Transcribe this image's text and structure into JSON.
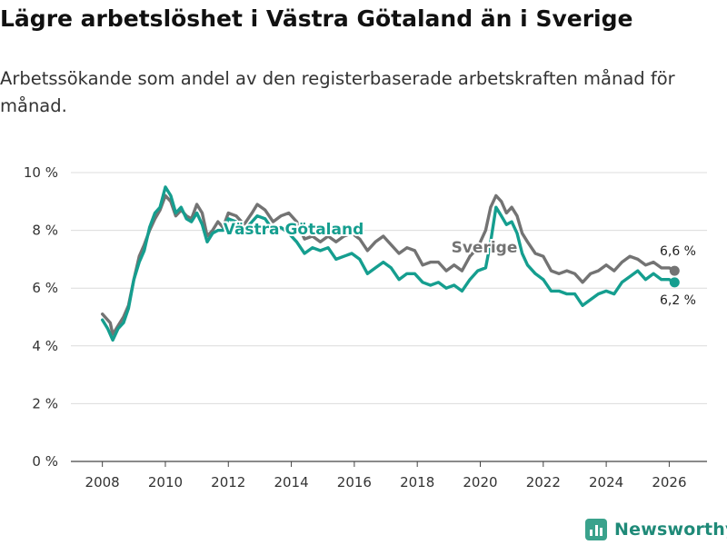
{
  "header": {
    "title": "Lägre arbetslöshet i Västra Götaland än i Sverige",
    "subtitle": "Arbetssökande som andel av den registerbaserade arbetskraften månad för månad."
  },
  "brand": {
    "name": "Newsworthy",
    "color": "#3aa28c",
    "icon": "bar-chart-icon"
  },
  "chart_data": {
    "type": "line",
    "title": "Lägre arbetslöshet i Västra Götaland än i Sverige",
    "xlabel": "",
    "ylabel": "",
    "xlim": [
      2007,
      2027.2
    ],
    "ylim": [
      0,
      10
    ],
    "grid": true,
    "x_ticks": [
      2008,
      2010,
      2012,
      2014,
      2016,
      2018,
      2020,
      2022,
      2024,
      2026
    ],
    "y_ticks": [
      0,
      2,
      4,
      6,
      8,
      10
    ],
    "y_tick_labels": [
      "0 %",
      "2 %",
      "4 %",
      "6 %",
      "8 %",
      "10 %"
    ],
    "series": [
      {
        "name": "Sverige",
        "color": "#737373",
        "end_label": "6,6 %",
        "x": [
          2008.0,
          2008.25,
          2008.33,
          2008.5,
          2008.67,
          2008.83,
          2009.0,
          2009.17,
          2009.33,
          2009.5,
          2009.67,
          2009.83,
          2010.0,
          2010.17,
          2010.33,
          2010.5,
          2010.67,
          2010.83,
          2011.0,
          2011.17,
          2011.33,
          2011.5,
          2011.67,
          2011.83,
          2012.0,
          2012.25,
          2012.5,
          2012.75,
          2012.92,
          2013.17,
          2013.42,
          2013.67,
          2013.92,
          2014.17,
          2014.42,
          2014.67,
          2014.92,
          2015.17,
          2015.42,
          2015.67,
          2015.92,
          2016.17,
          2016.42,
          2016.67,
          2016.92,
          2017.17,
          2017.42,
          2017.67,
          2017.92,
          2018.17,
          2018.42,
          2018.67,
          2018.92,
          2019.17,
          2019.42,
          2019.67,
          2019.92,
          2020.17,
          2020.33,
          2020.5,
          2020.67,
          2020.83,
          2021.0,
          2021.17,
          2021.33,
          2021.5,
          2021.75,
          2022.0,
          2022.25,
          2022.5,
          2022.75,
          2023.0,
          2023.25,
          2023.5,
          2023.75,
          2024.0,
          2024.25,
          2024.5,
          2024.75,
          2025.0,
          2025.25,
          2025.5,
          2025.75,
          2026.0,
          2026.17
        ],
        "y": [
          5.1,
          4.8,
          4.4,
          4.7,
          5.0,
          5.4,
          6.3,
          7.1,
          7.5,
          8.0,
          8.4,
          8.7,
          9.2,
          9.0,
          8.5,
          8.7,
          8.5,
          8.4,
          8.9,
          8.6,
          7.8,
          8.0,
          8.3,
          8.1,
          8.6,
          8.5,
          8.2,
          8.6,
          8.9,
          8.7,
          8.3,
          8.5,
          8.6,
          8.3,
          7.7,
          7.8,
          7.6,
          7.8,
          7.6,
          7.8,
          7.9,
          7.7,
          7.3,
          7.6,
          7.8,
          7.5,
          7.2,
          7.4,
          7.3,
          6.8,
          6.9,
          6.9,
          6.6,
          6.8,
          6.6,
          7.1,
          7.4,
          8.0,
          8.8,
          9.2,
          9.0,
          8.6,
          8.8,
          8.5,
          7.9,
          7.6,
          7.2,
          7.1,
          6.6,
          6.5,
          6.6,
          6.5,
          6.2,
          6.5,
          6.6,
          6.8,
          6.6,
          6.9,
          7.1,
          7.0,
          6.8,
          6.9,
          6.7,
          6.7,
          6.6
        ]
      },
      {
        "name": "Västra Götaland",
        "color": "#159e8f",
        "end_label": "6,2 %",
        "x": [
          2008.0,
          2008.17,
          2008.33,
          2008.5,
          2008.67,
          2008.83,
          2009.0,
          2009.17,
          2009.33,
          2009.5,
          2009.67,
          2009.83,
          2010.0,
          2010.17,
          2010.33,
          2010.5,
          2010.67,
          2010.83,
          2011.0,
          2011.17,
          2011.33,
          2011.5,
          2011.67,
          2011.83,
          2012.0,
          2012.25,
          2012.5,
          2012.75,
          2012.92,
          2013.17,
          2013.42,
          2013.67,
          2013.92,
          2014.17,
          2014.42,
          2014.67,
          2014.92,
          2015.17,
          2015.42,
          2015.67,
          2015.92,
          2016.17,
          2016.42,
          2016.67,
          2016.92,
          2017.17,
          2017.42,
          2017.67,
          2017.92,
          2018.17,
          2018.42,
          2018.67,
          2018.92,
          2019.17,
          2019.42,
          2019.67,
          2019.92,
          2020.17,
          2020.33,
          2020.5,
          2020.67,
          2020.83,
          2021.0,
          2021.17,
          2021.33,
          2021.5,
          2021.75,
          2022.0,
          2022.25,
          2022.5,
          2022.75,
          2023.0,
          2023.25,
          2023.5,
          2023.75,
          2024.0,
          2024.25,
          2024.5,
          2024.75,
          2025.0,
          2025.25,
          2025.5,
          2025.75,
          2026.0,
          2026.17
        ],
        "y": [
          4.9,
          4.6,
          4.2,
          4.6,
          4.8,
          5.3,
          6.3,
          6.9,
          7.3,
          8.1,
          8.6,
          8.8,
          9.5,
          9.2,
          8.6,
          8.8,
          8.4,
          8.3,
          8.6,
          8.2,
          7.6,
          7.9,
          8.0,
          8.0,
          8.4,
          8.3,
          8.0,
          8.3,
          8.5,
          8.4,
          8.0,
          8.1,
          7.9,
          7.6,
          7.2,
          7.4,
          7.3,
          7.4,
          7.0,
          7.1,
          7.2,
          7.0,
          6.5,
          6.7,
          6.9,
          6.7,
          6.3,
          6.5,
          6.5,
          6.2,
          6.1,
          6.2,
          6.0,
          6.1,
          5.9,
          6.3,
          6.6,
          6.7,
          7.6,
          8.8,
          8.5,
          8.2,
          8.3,
          7.9,
          7.2,
          6.8,
          6.5,
          6.3,
          5.9,
          5.9,
          5.8,
          5.8,
          5.4,
          5.6,
          5.8,
          5.9,
          5.8,
          6.2,
          6.4,
          6.6,
          6.3,
          6.5,
          6.3,
          6.3,
          6.2
        ]
      }
    ]
  }
}
